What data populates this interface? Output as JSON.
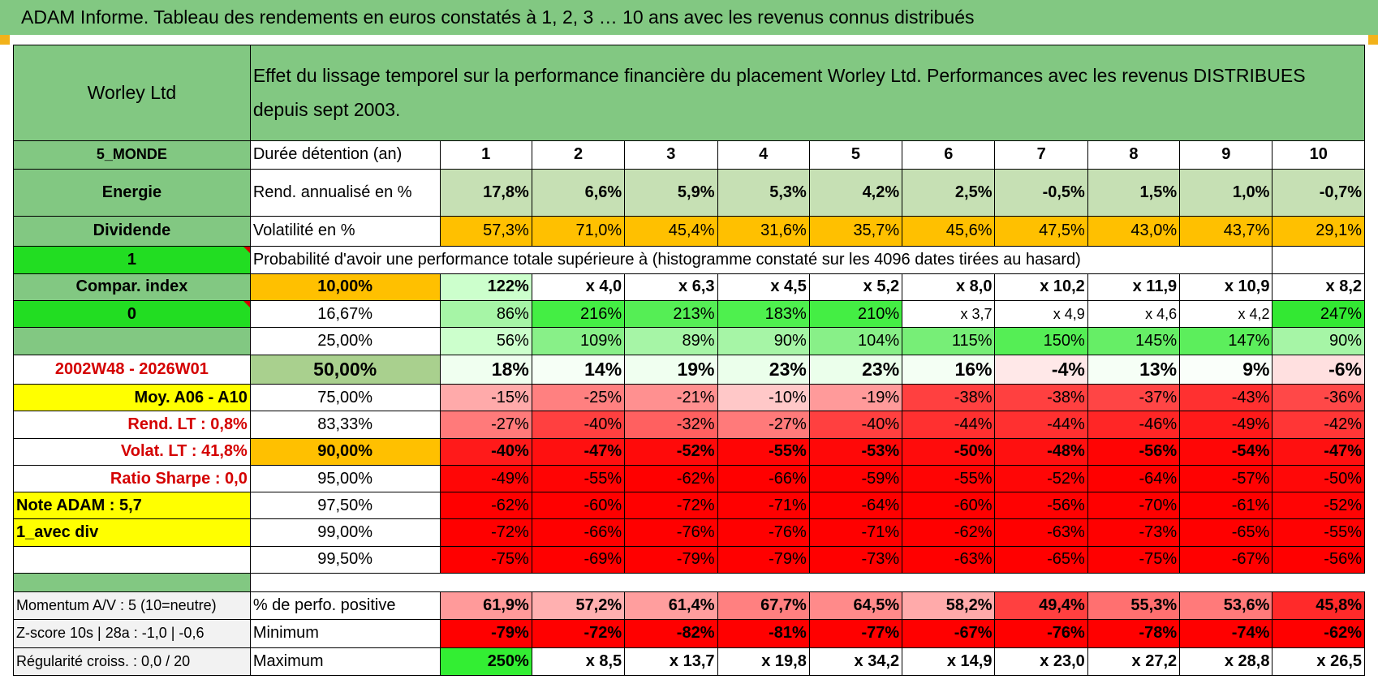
{
  "title": "ADAM Informe. Tableau des rendements en euros constatés à 1, 2, 3 … 10 ans avec les revenus connus distribués",
  "instrument": "Worley Ltd",
  "subtitle": "Effet du lissage temporel sur la performance financière du placement Worley Ltd. Performances avec les revenus DISTRIBUES depuis sept 2003.",
  "side": {
    "region": "5_MONDE",
    "sector": "Energie",
    "style": "Dividende",
    "flag1": "1",
    "compar": "Compar. index",
    "flag2": "0",
    "period": "2002W48 - 2026W01",
    "moy": "Moy. A06 - A10",
    "rend_lt": "Rend. LT :    0,8%",
    "volat_lt": "Volat. LT :    41,8%",
    "sharpe": "Ratio Sharpe :     0,0",
    "note": "Note ADAM : 5,7",
    "mode": "1_avec div"
  },
  "header_label": "Durée détention (an)",
  "years": [
    "1",
    "2",
    "3",
    "4",
    "5",
    "6",
    "7",
    "8",
    "9",
    "10"
  ],
  "rend_label": "Rend. annualisé en %",
  "rend": [
    "17,8%",
    "6,6%",
    "5,9%",
    "5,3%",
    "4,2%",
    "2,5%",
    "-0,5%",
    "1,5%",
    "1,0%",
    "-0,7%"
  ],
  "vol_label": "Volatilité en %",
  "vol": [
    "57,3%",
    "71,0%",
    "45,4%",
    "31,6%",
    "35,7%",
    "45,6%",
    "47,5%",
    "43,0%",
    "43,7%",
    "29,1%"
  ],
  "prob_text": "Probabilité d'avoir une performance totale supérieure à (histogramme constaté sur les 4096 dates tirées au hasard)",
  "prob_rows": [
    {
      "p": "10,00%",
      "vals": [
        "122%",
        "x 4,0",
        "x 6,3",
        "x 4,5",
        "x 5,2",
        "x 8,0",
        "x 10,2",
        "x 11,9",
        "x 10,9",
        "x 8,2"
      ]
    },
    {
      "p": "16,67%",
      "vals": [
        "86%",
        "216%",
        "213%",
        "183%",
        "210%",
        "x 3,7",
        "x 4,9",
        "x 4,6",
        "x 4,2",
        "247%"
      ]
    },
    {
      "p": "25,00%",
      "vals": [
        "56%",
        "109%",
        "89%",
        "90%",
        "104%",
        "115%",
        "150%",
        "145%",
        "147%",
        "90%"
      ]
    },
    {
      "p": "50,00%",
      "vals": [
        "18%",
        "14%",
        "19%",
        "23%",
        "23%",
        "16%",
        "-4%",
        "13%",
        "9%",
        "-6%"
      ]
    },
    {
      "p": "75,00%",
      "vals": [
        "-15%",
        "-25%",
        "-21%",
        "-10%",
        "-19%",
        "-38%",
        "-38%",
        "-37%",
        "-43%",
        "-36%"
      ]
    },
    {
      "p": "83,33%",
      "vals": [
        "-27%",
        "-40%",
        "-32%",
        "-27%",
        "-40%",
        "-44%",
        "-44%",
        "-46%",
        "-49%",
        "-42%"
      ]
    },
    {
      "p": "90,00%",
      "vals": [
        "-40%",
        "-47%",
        "-52%",
        "-55%",
        "-53%",
        "-50%",
        "-48%",
        "-56%",
        "-54%",
        "-47%"
      ]
    },
    {
      "p": "95,00%",
      "vals": [
        "-49%",
        "-55%",
        "-62%",
        "-66%",
        "-59%",
        "-55%",
        "-52%",
        "-64%",
        "-57%",
        "-50%"
      ]
    },
    {
      "p": "97,50%",
      "vals": [
        "-62%",
        "-60%",
        "-72%",
        "-71%",
        "-64%",
        "-60%",
        "-56%",
        "-70%",
        "-61%",
        "-52%"
      ]
    },
    {
      "p": "99,00%",
      "vals": [
        "-72%",
        "-66%",
        "-76%",
        "-76%",
        "-71%",
        "-62%",
        "-63%",
        "-73%",
        "-65%",
        "-55%"
      ]
    },
    {
      "p": "99,50%",
      "vals": [
        "-75%",
        "-69%",
        "-79%",
        "-79%",
        "-73%",
        "-63%",
        "-65%",
        "-75%",
        "-67%",
        "-56%"
      ]
    }
  ],
  "bottom_rows": [
    {
      "side": "Momentum A/V : 5 (10=neutre)",
      "label": "% de perfo. positive",
      "vals": [
        "61,9%",
        "57,2%",
        "61,4%",
        "67,7%",
        "64,5%",
        "58,2%",
        "49,4%",
        "55,3%",
        "53,6%",
        "45,8%"
      ]
    },
    {
      "side": "Z-score 10s | 28a : -1,0 | -0,6",
      "label": "Minimum",
      "vals": [
        "-79%",
        "-72%",
        "-82%",
        "-81%",
        "-77%",
        "-67%",
        "-76%",
        "-78%",
        "-74%",
        "-62%"
      ]
    },
    {
      "side": "Régularité croiss. : 0,0 / 20",
      "label": "Maximum",
      "vals": [
        "250%",
        "x 8,5",
        "x 13,7",
        "x 19,8",
        "x 34,2",
        "x 14,9",
        "x 23,0",
        "x 27,2",
        "x 28,8",
        "x 26,5"
      ]
    }
  ],
  "colors": {
    "header_green": "#82c882",
    "bright_green": "#22dd22",
    "yellow": "#ffff00",
    "orange": "#ffc000",
    "label_red": "#d40000",
    "prob_fills": [
      [
        "#ccffcc",
        "#ffffff",
        "#ffffff",
        "#ffffff",
        "#ffffff",
        "#ffffff",
        "#ffffff",
        "#ffffff",
        "#ffffff",
        "#ffffff"
      ],
      [
        "#a6f5a6",
        "#44ee44",
        "#55ee55",
        "#4ef04e",
        "#44ee44",
        "#ffffff",
        "#ffffff",
        "#ffffff",
        "#ffffff",
        "#33e833"
      ],
      [
        "#ccffcc",
        "#88f088",
        "#a6f5a6",
        "#a6f5a6",
        "#88f088",
        "#77ee77",
        "#55ee55",
        "#66ee66",
        "#5cee5c",
        "#a6f5a6"
      ],
      [
        "#f0fff0",
        "#f6fff6",
        "#f0fff0",
        "#ebffeb",
        "#ebffeb",
        "#f4fff4",
        "#ffe8e8",
        "#f6fff6",
        "#fafffa",
        "#ffe0e0"
      ],
      [
        "#ffaaaa",
        "#ff8080",
        "#ff9090",
        "#ffc8c8",
        "#ff9a9a",
        "#ff4040",
        "#ff4040",
        "#ff4545",
        "#ff3030",
        "#ff4848"
      ],
      [
        "#ff7a7a",
        "#ff4040",
        "#ff6060",
        "#ff7a7a",
        "#ff4040",
        "#ff3030",
        "#ff3030",
        "#ff2626",
        "#ff1a1a",
        "#ff3636"
      ],
      [
        "#ff1a1a",
        "#ff1010",
        "#ff0a0a",
        "#ff0505",
        "#ff0808",
        "#ff0c0c",
        "#ff1010",
        "#ff0404",
        "#ff0606",
        "#ff1010"
      ],
      [
        "#ff0606",
        "#ff0404",
        "#ff0000",
        "#ff0000",
        "#ff0202",
        "#ff0404",
        "#ff0606",
        "#ff0000",
        "#ff0202",
        "#ff0808"
      ],
      [
        "#ff0000",
        "#ff0000",
        "#ff0000",
        "#ff0000",
        "#ff0000",
        "#ff0000",
        "#ff0202",
        "#ff0000",
        "#ff0000",
        "#ff0404"
      ],
      [
        "#ff0000",
        "#ff0000",
        "#ff0000",
        "#ff0000",
        "#ff0000",
        "#ff0000",
        "#ff0000",
        "#ff0000",
        "#ff0000",
        "#ff0202"
      ],
      [
        "#ff0000",
        "#ff0000",
        "#ff0000",
        "#ff0000",
        "#ff0000",
        "#ff0000",
        "#ff0000",
        "#ff0000",
        "#ff0000",
        "#ff0000"
      ]
    ],
    "bottom_fills": [
      [
        "#ff9a9a",
        "#ffb0b0",
        "#ff9e9e",
        "#ff8080",
        "#ff8a8a",
        "#ffaaaa",
        "#ff4040",
        "#ff7070",
        "#ff7a7a",
        "#ff2a2a"
      ],
      [
        "#ff0000",
        "#ff0000",
        "#ff0000",
        "#ff0000",
        "#ff0000",
        "#ff0000",
        "#ff0000",
        "#ff0000",
        "#ff0000",
        "#ff0000"
      ],
      [
        "#33ee33",
        "#ffffff",
        "#ffffff",
        "#ffffff",
        "#ffffff",
        "#ffffff",
        "#ffffff",
        "#ffffff",
        "#ffffff",
        "#ffffff"
      ]
    ]
  }
}
